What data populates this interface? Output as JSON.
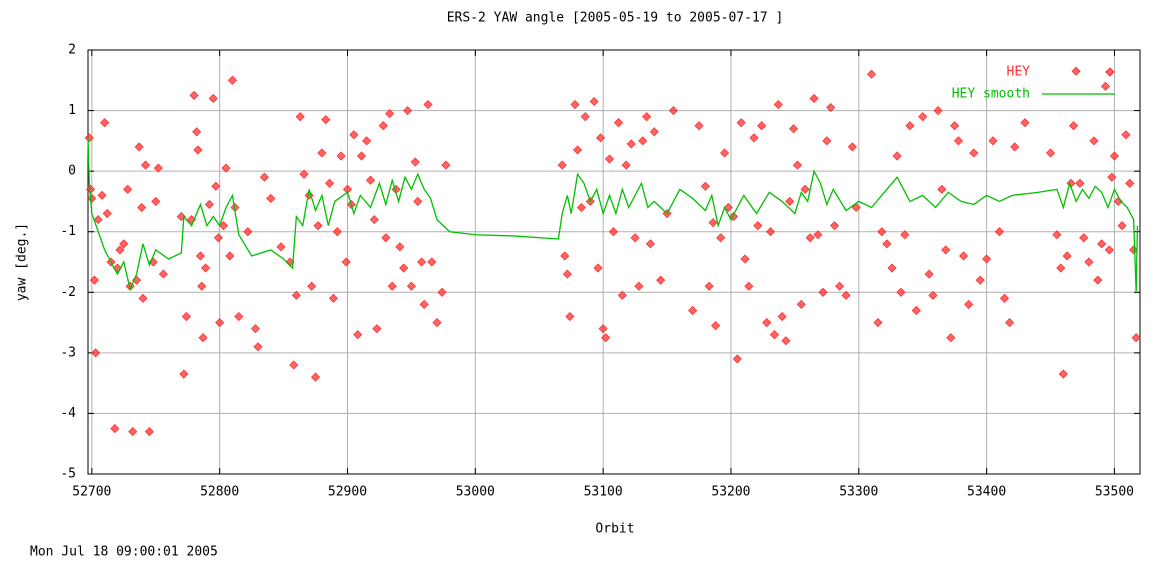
{
  "chart_data": {
    "type": "scatter",
    "title": "ERS-2 YAW angle [2005-05-19 to 2005-07-17 ]",
    "x_label": "Orbit",
    "y_label": "yaw [deg.]",
    "footer": "Mon Jul 18 09:00:01 2005",
    "xlim": [
      52697,
      53520
    ],
    "ylim": [
      -5,
      2
    ],
    "xticks": [
      52700,
      52800,
      52900,
      53000,
      53100,
      53200,
      53300,
      53400,
      53500
    ],
    "yticks": [
      -5,
      -4,
      -3,
      -2,
      -1,
      0,
      1,
      2
    ],
    "grid": true,
    "legend": "top-right",
    "series": [
      {
        "name": "HEY",
        "color": "#ff3030",
        "mode": "markers",
        "x": [
          52698,
          52699,
          52700,
          52702,
          52703,
          52705,
          52708,
          52710,
          52712,
          52715,
          52718,
          52720,
          52722,
          52725,
          52728,
          52730,
          52732,
          52735,
          52737,
          52739,
          52740,
          52742,
          52745,
          52748,
          52750,
          52752,
          52756,
          52770,
          52772,
          52774,
          52778,
          52780,
          52782,
          52783,
          52785,
          52786,
          52787,
          52789,
          52792,
          52795,
          52797,
          52799,
          52800,
          52803,
          52805,
          52808,
          52810,
          52812,
          52815,
          52822,
          52828,
          52830,
          52835,
          52840,
          52848,
          52855,
          52858,
          52860,
          52863,
          52866,
          52870,
          52872,
          52875,
          52877,
          52880,
          52883,
          52886,
          52889,
          52892,
          52895,
          52899,
          52900,
          52903,
          52905,
          52908,
          52911,
          52915,
          52918,
          52921,
          52923,
          52928,
          52930,
          52933,
          52935,
          52938,
          52941,
          52944,
          52947,
          52950,
          52953,
          52955,
          52958,
          52960,
          52963,
          52966,
          52970,
          52974,
          52977,
          53068,
          53070,
          53072,
          53074,
          53078,
          53080,
          53083,
          53086,
          53090,
          53093,
          53096,
          53098,
          53100,
          53102,
          53105,
          53108,
          53112,
          53115,
          53118,
          53122,
          53125,
          53128,
          53131,
          53134,
          53137,
          53140,
          53145,
          53150,
          53155,
          53170,
          53175,
          53180,
          53183,
          53186,
          53188,
          53192,
          53195,
          53198,
          53202,
          53205,
          53208,
          53211,
          53214,
          53218,
          53221,
          53224,
          53228,
          53231,
          53234,
          53237,
          53240,
          53243,
          53246,
          53249,
          53252,
          53255,
          53258,
          53262,
          53265,
          53268,
          53272,
          53275,
          53278,
          53281,
          53285,
          53290,
          53295,
          53298,
          53310,
          53315,
          53318,
          53322,
          53326,
          53330,
          53333,
          53336,
          53340,
          53345,
          53350,
          53355,
          53358,
          53362,
          53365,
          53368,
          53372,
          53375,
          53378,
          53382,
          53386,
          53390,
          53395,
          53400,
          53405,
          53410,
          53414,
          53418,
          53422,
          53430,
          53450,
          53455,
          53458,
          53460,
          53463,
          53466,
          53468,
          53470,
          53473,
          53476,
          53480,
          53484,
          53487,
          53490,
          53493,
          53496,
          53498,
          53500,
          53503,
          53506,
          53509,
          53512,
          53515,
          53517
        ],
        "values": [
          0.55,
          -0.3,
          -0.45,
          -1.8,
          -3.0,
          -0.8,
          -0.4,
          0.8,
          -0.7,
          -1.5,
          -4.25,
          -1.6,
          -1.3,
          -1.2,
          -0.3,
          -1.9,
          -4.3,
          -1.8,
          0.4,
          -0.6,
          -2.1,
          0.1,
          -4.3,
          -1.5,
          -0.5,
          0.05,
          -1.7,
          -0.75,
          -3.35,
          -2.4,
          -0.8,
          1.25,
          0.65,
          0.35,
          -1.4,
          -1.9,
          -2.75,
          -1.6,
          -0.55,
          1.2,
          -0.25,
          -1.1,
          -2.5,
          -0.9,
          0.05,
          -1.4,
          1.5,
          -0.6,
          -2.4,
          -1.0,
          -2.6,
          -2.9,
          -0.1,
          -0.45,
          -1.25,
          -1.5,
          -3.2,
          -2.05,
          0.9,
          -0.05,
          -0.4,
          -1.9,
          -3.4,
          -0.9,
          0.3,
          0.85,
          -0.2,
          -2.1,
          -1.0,
          0.25,
          -1.5,
          -0.3,
          -0.55,
          0.6,
          -2.7,
          0.25,
          0.5,
          -0.15,
          -0.8,
          -2.6,
          0.75,
          -1.1,
          0.95,
          -1.9,
          -0.3,
          -1.25,
          -1.6,
          1.0,
          -1.9,
          0.15,
          -0.5,
          -1.5,
          -2.2,
          1.1,
          -1.5,
          -2.5,
          -2.0,
          0.1,
          0.1,
          -1.4,
          -1.7,
          -2.4,
          1.1,
          0.35,
          -0.6,
          0.9,
          -0.5,
          1.15,
          -1.6,
          0.55,
          -2.6,
          -2.75,
          0.2,
          -1.0,
          0.8,
          -2.05,
          0.1,
          0.45,
          -1.1,
          -1.9,
          0.5,
          0.9,
          -1.2,
          0.65,
          -1.8,
          -0.7,
          1.0,
          -2.3,
          0.75,
          -0.25,
          -1.9,
          -0.85,
          -2.55,
          -1.1,
          0.3,
          -0.6,
          -0.75,
          -3.1,
          0.8,
          -1.45,
          -1.9,
          0.55,
          -0.9,
          0.75,
          -2.5,
          -1.0,
          -2.7,
          1.1,
          -2.4,
          -2.8,
          -0.5,
          0.7,
          0.1,
          -2.2,
          -0.3,
          -1.1,
          1.2,
          -1.05,
          -2.0,
          0.5,
          1.05,
          -0.9,
          -1.9,
          -2.05,
          0.4,
          -0.6,
          1.6,
          -2.5,
          -1.0,
          -1.2,
          -1.6,
          0.25,
          -2.0,
          -1.05,
          0.75,
          -2.3,
          0.9,
          -1.7,
          -2.05,
          1.0,
          -0.3,
          -1.3,
          -2.75,
          0.75,
          0.5,
          -1.4,
          -2.2,
          0.3,
          -1.8,
          -1.45,
          0.5,
          -1.0,
          -2.1,
          -2.5,
          0.4,
          0.8,
          0.3,
          -1.05,
          -1.6,
          -3.35,
          -1.4,
          -0.2,
          0.75,
          1.65,
          -0.2,
          -1.1,
          -1.5,
          0.5,
          -1.8,
          -1.2,
          1.4,
          -1.3,
          -0.1,
          0.25,
          -0.5,
          -0.9,
          0.6,
          -0.2,
          -1.3,
          -2.75
        ]
      },
      {
        "name": "HEY smooth",
        "color": "#00c000",
        "mode": "line",
        "x": [
          52697,
          52698,
          52700,
          52705,
          52710,
          52715,
          52720,
          52725,
          52730,
          52735,
          52740,
          52745,
          52750,
          52760,
          52770,
          52772,
          52778,
          52785,
          52790,
          52795,
          52800,
          52805,
          52810,
          52815,
          52825,
          52840,
          52850,
          52857,
          52860,
          52865,
          52870,
          52875,
          52880,
          52885,
          52890,
          52900,
          52905,
          52910,
          52918,
          52925,
          52930,
          52935,
          52940,
          52945,
          52950,
          52955,
          52960,
          52965,
          52970,
          52980,
          53000,
          53030,
          53065,
          53068,
          53072,
          53075,
          53080,
          53085,
          53090,
          53095,
          53100,
          53105,
          53110,
          53115,
          53120,
          53125,
          53130,
          53135,
          53140,
          53150,
          53160,
          53170,
          53180,
          53185,
          53190,
          53195,
          53200,
          53210,
          53220,
          53230,
          53240,
          53250,
          53255,
          53260,
          53265,
          53270,
          53275,
          53280,
          53290,
          53300,
          53310,
          53320,
          53330,
          53340,
          53350,
          53360,
          53370,
          53380,
          53390,
          53400,
          53410,
          53420,
          53440,
          53455,
          53460,
          53465,
          53470,
          53475,
          53480,
          53485,
          53490,
          53495,
          53500,
          53505,
          53510,
          53515,
          53517,
          53518
        ],
        "values": [
          0.55,
          -0.2,
          -0.7,
          -1.0,
          -1.3,
          -1.5,
          -1.7,
          -1.5,
          -1.95,
          -1.7,
          -1.2,
          -1.55,
          -1.3,
          -1.45,
          -1.35,
          -0.75,
          -0.9,
          -0.55,
          -0.9,
          -0.75,
          -0.9,
          -0.6,
          -0.4,
          -1.05,
          -1.4,
          -1.3,
          -1.45,
          -1.6,
          -0.75,
          -0.9,
          -0.3,
          -0.65,
          -0.4,
          -0.9,
          -0.5,
          -0.35,
          -0.7,
          -0.4,
          -0.6,
          -0.2,
          -0.55,
          -0.15,
          -0.5,
          -0.1,
          -0.3,
          -0.05,
          -0.3,
          -0.45,
          -0.8,
          -1.0,
          -1.05,
          -1.07,
          -1.12,
          -0.7,
          -0.4,
          -0.7,
          -0.05,
          -0.2,
          -0.5,
          -0.3,
          -0.7,
          -0.4,
          -0.7,
          -0.3,
          -0.6,
          -0.4,
          -0.2,
          -0.6,
          -0.5,
          -0.7,
          -0.3,
          -0.45,
          -0.65,
          -0.4,
          -0.9,
          -0.6,
          -0.8,
          -0.4,
          -0.7,
          -0.35,
          -0.5,
          -0.7,
          -0.35,
          -0.5,
          0.0,
          -0.2,
          -0.55,
          -0.3,
          -0.65,
          -0.5,
          -0.6,
          -0.35,
          -0.1,
          -0.5,
          -0.4,
          -0.6,
          -0.35,
          -0.5,
          -0.55,
          -0.4,
          -0.5,
          -0.4,
          -0.35,
          -0.3,
          -0.6,
          -0.2,
          -0.5,
          -0.3,
          -0.45,
          -0.25,
          -0.35,
          -0.6,
          -0.3,
          -0.5,
          -0.6,
          -0.8,
          -2.0,
          -0.9
        ]
      }
    ]
  }
}
